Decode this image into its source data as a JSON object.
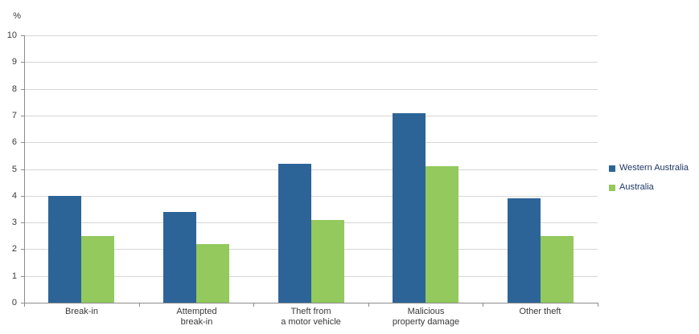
{
  "chart_data": {
    "type": "bar",
    "ylabel": "%",
    "ylim": [
      0,
      10
    ],
    "ytick_step": 1,
    "grid": true,
    "legend_position": "right",
    "categories": [
      "Break-in",
      "Attempted\nbreak-in",
      "Theft from\na motor vehicle",
      "Malicious\nproperty damage",
      "Other theft"
    ],
    "series": [
      {
        "name": "Western Australia",
        "color": "#2D6498",
        "values": [
          4.0,
          3.4,
          5.2,
          7.1,
          3.9
        ]
      },
      {
        "name": "Australia",
        "color": "#93C95D",
        "values": [
          2.5,
          2.2,
          3.1,
          5.1,
          2.5
        ]
      }
    ]
  },
  "colors": {
    "background": "#FFFFFF",
    "gridline": "#D6D6D6",
    "axis": "#8C8C8C",
    "tick_label_text": "#383838",
    "legend_text": "#1F3864"
  }
}
